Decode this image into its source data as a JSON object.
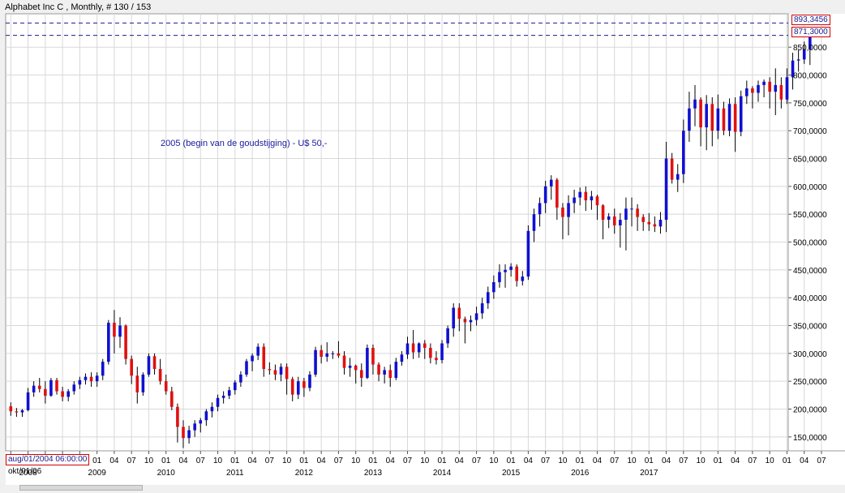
{
  "header": {
    "title": "Alphabet Inc C , Monthly, # 130 / 153"
  },
  "markers": {
    "upper_price": "893,3456",
    "current_price": "871,3000",
    "cursor_date": "aug/01/2004 06:00:00",
    "first_visible_date": "okt/01/06"
  },
  "annotation": "2005 (begin van de goudstijging) - U$ 50,-",
  "colors": {
    "up": "#1010d0",
    "down": "#e01010",
    "grid": "#d8d8d8",
    "marker_line": "#1a1a8c"
  },
  "chart_data": {
    "type": "candlestick",
    "title": "Alphabet Inc C , Monthly, # 130 / 153",
    "timeframe": "Monthly",
    "ylim": [
      125,
      910
    ],
    "y_ticks": [
      150,
      200,
      250,
      300,
      350,
      400,
      450,
      500,
      550,
      600,
      650,
      700,
      750,
      800,
      850
    ],
    "y_tick_labels": [
      "150,0000",
      "200,0000",
      "250,0000",
      "300,0000",
      "350,0000",
      "400,0000",
      "450,0000",
      "500,0000",
      "550,0000",
      "600,0000",
      "650,0000",
      "700,0000",
      "750,0000",
      "800,0000",
      "850,0000"
    ],
    "horizontal_lines": [
      893.3456,
      871.3
    ],
    "x_tick_labels": [
      "10",
      "01",
      "04",
      "07",
      "10",
      "01",
      "04",
      "07",
      "10",
      "01",
      "04",
      "07",
      "10",
      "01",
      "04",
      "07",
      "10",
      "01",
      "04",
      "07",
      "10",
      "01",
      "04",
      "07",
      "10",
      "01",
      "04",
      "07",
      "10",
      "01",
      "04",
      "07",
      "10",
      "01",
      "04",
      "07",
      "10",
      "01",
      "04",
      "07",
      "10",
      "01",
      "04",
      "07",
      "10",
      "01",
      "04",
      "07"
    ],
    "year_labels": [
      "2008",
      "2009",
      "2010",
      "2011",
      "2012",
      "2013",
      "2014",
      "2015",
      "2016",
      "2017"
    ],
    "first_month": "2006-10",
    "candles": [
      [
        205,
        212,
        188,
        196
      ],
      [
        196,
        202,
        186,
        194
      ],
      [
        194,
        200,
        186,
        198
      ],
      [
        198,
        238,
        196,
        230
      ],
      [
        230,
        250,
        222,
        242
      ],
      [
        242,
        256,
        230,
        236
      ],
      [
        236,
        250,
        210,
        224
      ],
      [
        224,
        256,
        222,
        252
      ],
      [
        252,
        256,
        226,
        232
      ],
      [
        232,
        240,
        214,
        222
      ],
      [
        222,
        236,
        214,
        232
      ],
      [
        232,
        250,
        226,
        244
      ],
      [
        244,
        258,
        236,
        252
      ],
      [
        252,
        264,
        244,
        258
      ],
      [
        258,
        266,
        240,
        250
      ],
      [
        250,
        266,
        240,
        260
      ],
      [
        260,
        290,
        252,
        285
      ],
      [
        285,
        360,
        280,
        355
      ],
      [
        355,
        378,
        300,
        330
      ],
      [
        330,
        365,
        310,
        350
      ],
      [
        350,
        352,
        280,
        290
      ],
      [
        290,
        296,
        245,
        260
      ],
      [
        260,
        276,
        210,
        230
      ],
      [
        230,
        266,
        224,
        262
      ],
      [
        262,
        300,
        258,
        295
      ],
      [
        295,
        300,
        262,
        272
      ],
      [
        272,
        290,
        244,
        250
      ],
      [
        250,
        262,
        226,
        232
      ],
      [
        232,
        240,
        198,
        204
      ],
      [
        204,
        210,
        140,
        168
      ],
      [
        168,
        180,
        130,
        148
      ],
      [
        148,
        170,
        138,
        162
      ],
      [
        162,
        180,
        150,
        174
      ],
      [
        174,
        184,
        158,
        180
      ],
      [
        180,
        200,
        170,
        196
      ],
      [
        196,
        212,
        185,
        204
      ],
      [
        204,
        226,
        196,
        220
      ],
      [
        220,
        232,
        210,
        224
      ],
      [
        224,
        240,
        218,
        234
      ],
      [
        234,
        252,
        226,
        248
      ],
      [
        248,
        268,
        240,
        262
      ],
      [
        262,
        290,
        258,
        286
      ],
      [
        286,
        300,
        268,
        296
      ],
      [
        296,
        318,
        288,
        312
      ],
      [
        312,
        318,
        258,
        272
      ],
      [
        272,
        284,
        262,
        270
      ],
      [
        270,
        280,
        252,
        262
      ],
      [
        262,
        282,
        250,
        276
      ],
      [
        276,
        282,
        226,
        254
      ],
      [
        254,
        258,
        214,
        226
      ],
      [
        226,
        258,
        218,
        250
      ],
      [
        250,
        256,
        222,
        238
      ],
      [
        238,
        268,
        232,
        262
      ],
      [
        262,
        312,
        258,
        306
      ],
      [
        306,
        315,
        282,
        294
      ],
      [
        294,
        320,
        285,
        300
      ],
      [
        300,
        304,
        290,
        300
      ],
      [
        300,
        322,
        292,
        296
      ],
      [
        296,
        304,
        262,
        274
      ],
      [
        274,
        292,
        258,
        278
      ],
      [
        278,
        280,
        246,
        270
      ],
      [
        270,
        282,
        240,
        256
      ],
      [
        256,
        316,
        254,
        310
      ],
      [
        310,
        316,
        262,
        280
      ],
      [
        280,
        284,
        250,
        262
      ],
      [
        262,
        276,
        246,
        270
      ],
      [
        270,
        280,
        240,
        256
      ],
      [
        256,
        292,
        252,
        285
      ],
      [
        285,
        304,
        278,
        298
      ],
      [
        298,
        330,
        290,
        318
      ],
      [
        318,
        342,
        290,
        302
      ],
      [
        302,
        320,
        292,
        318
      ],
      [
        318,
        324,
        290,
        310
      ],
      [
        310,
        318,
        282,
        292
      ],
      [
        292,
        304,
        280,
        288
      ],
      [
        288,
        324,
        282,
        318
      ],
      [
        318,
        350,
        310,
        345
      ],
      [
        345,
        390,
        330,
        382
      ],
      [
        382,
        390,
        340,
        362
      ],
      [
        362,
        366,
        318,
        356
      ],
      [
        356,
        368,
        340,
        360
      ],
      [
        360,
        384,
        350,
        372
      ],
      [
        372,
        400,
        362,
        390
      ],
      [
        390,
        420,
        380,
        410
      ],
      [
        410,
        440,
        398,
        428
      ],
      [
        428,
        460,
        418,
        446
      ],
      [
        446,
        460,
        418,
        450
      ],
      [
        450,
        462,
        438,
        456
      ],
      [
        456,
        460,
        420,
        430
      ],
      [
        430,
        448,
        422,
        438
      ],
      [
        438,
        530,
        432,
        520
      ],
      [
        520,
        560,
        500,
        550
      ],
      [
        550,
        580,
        528,
        570
      ],
      [
        570,
        610,
        552,
        600
      ],
      [
        600,
        620,
        576,
        612
      ],
      [
        612,
        615,
        540,
        562
      ],
      [
        562,
        570,
        505,
        545
      ],
      [
        545,
        584,
        512,
        570
      ],
      [
        570,
        594,
        552,
        580
      ],
      [
        580,
        598,
        566,
        590
      ],
      [
        590,
        600,
        556,
        575
      ],
      [
        575,
        592,
        558,
        582
      ],
      [
        582,
        585,
        540,
        566
      ],
      [
        566,
        568,
        505,
        540
      ],
      [
        540,
        552,
        525,
        546
      ],
      [
        546,
        560,
        515,
        530
      ],
      [
        530,
        552,
        490,
        540
      ],
      [
        540,
        580,
        485,
        560
      ],
      [
        560,
        580,
        528,
        560
      ],
      [
        560,
        568,
        520,
        545
      ],
      [
        545,
        550,
        520,
        536
      ],
      [
        536,
        552,
        520,
        532
      ],
      [
        532,
        546,
        518,
        528
      ],
      [
        528,
        554,
        515,
        540
      ],
      [
        540,
        680,
        518,
        650
      ],
      [
        650,
        660,
        605,
        612
      ],
      [
        612,
        640,
        590,
        622
      ],
      [
        622,
        720,
        606,
        700
      ],
      [
        700,
        770,
        680,
        740
      ],
      [
        740,
        782,
        708,
        756
      ],
      [
        756,
        760,
        672,
        706
      ],
      [
        706,
        764,
        665,
        748
      ],
      [
        748,
        760,
        672,
        700
      ],
      [
        700,
        765,
        685,
        740
      ],
      [
        740,
        752,
        692,
        700
      ],
      [
        700,
        758,
        690,
        748
      ],
      [
        748,
        760,
        662,
        698
      ],
      [
        698,
        772,
        690,
        762
      ],
      [
        762,
        790,
        748,
        776
      ],
      [
        776,
        780,
        740,
        768
      ],
      [
        768,
        790,
        752,
        782
      ],
      [
        782,
        792,
        760,
        788
      ],
      [
        788,
        796,
        740,
        770
      ],
      [
        770,
        812,
        728,
        782
      ],
      [
        782,
        796,
        740,
        756
      ],
      [
        756,
        812,
        748,
        796
      ],
      [
        796,
        840,
        774,
        826
      ],
      [
        826,
        845,
        806,
        828
      ],
      [
        828,
        860,
        820,
        846
      ],
      [
        846,
        885,
        818,
        871
      ]
    ]
  }
}
